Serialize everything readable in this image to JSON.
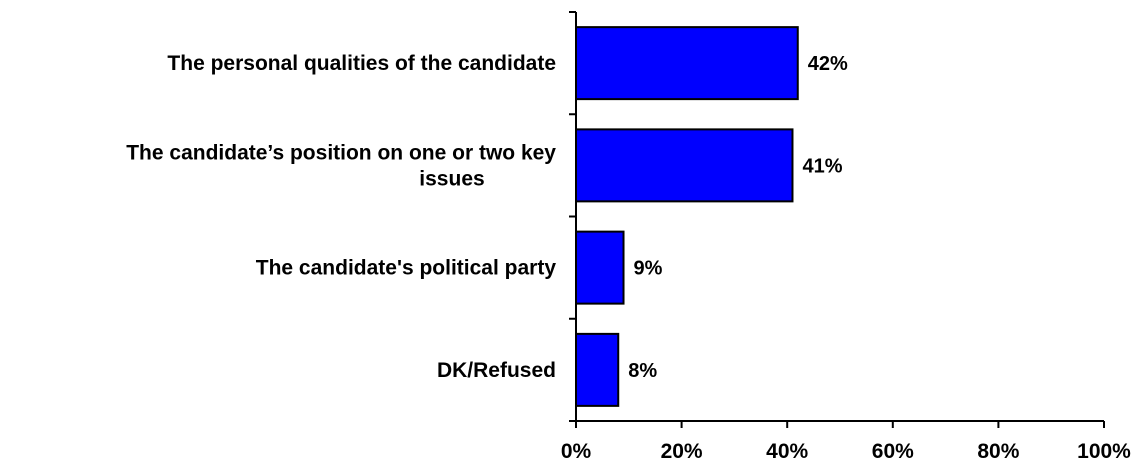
{
  "chart_data": {
    "type": "bar",
    "orientation": "horizontal",
    "categories": [
      [
        "The personal qualities of the candidate"
      ],
      [
        "The candidate’s position on one or two key",
        "issues"
      ],
      [
        "The candidate's political party"
      ],
      [
        "DK/Refused"
      ]
    ],
    "values": [
      42,
      41,
      9,
      8
    ],
    "data_labels": [
      "42%",
      "41%",
      "9%",
      "8%"
    ],
    "xlim": [
      0,
      100
    ],
    "x_ticks": [
      0,
      20,
      40,
      60,
      80,
      100
    ],
    "x_tick_labels": [
      "0%",
      "20%",
      "40%",
      "60%",
      "80%",
      "100%"
    ],
    "bar_color": "#0000ff",
    "bar_edge_color": "#000000",
    "grid": false,
    "title": "",
    "xlabel": "",
    "ylabel": ""
  }
}
